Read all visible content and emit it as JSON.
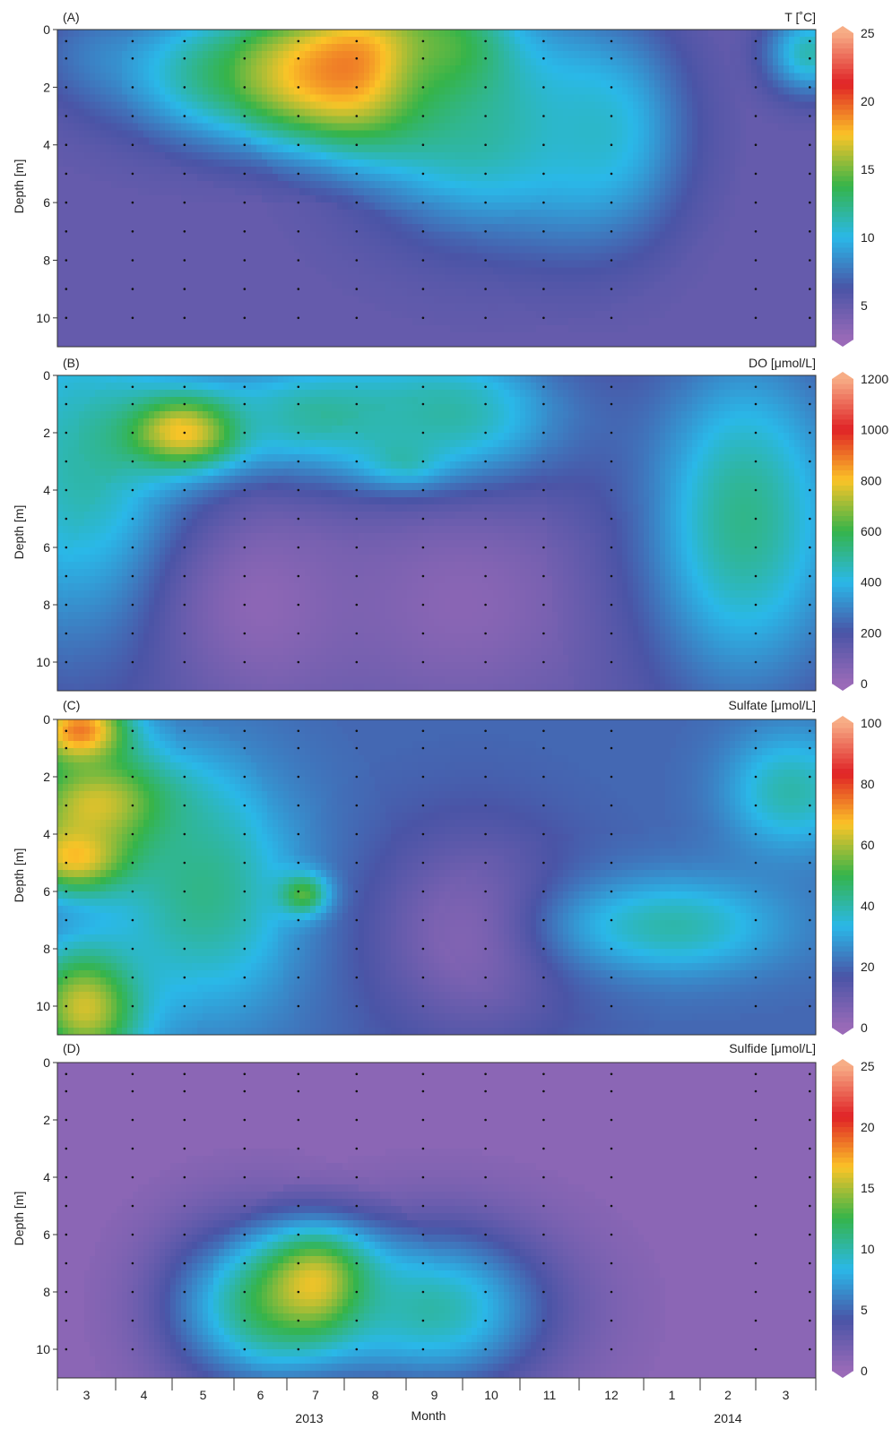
{
  "figure": {
    "xlabel": "Month",
    "month_labels": [
      "3",
      "4",
      "5",
      "6",
      "7",
      "8",
      "9",
      "10",
      "11",
      "12",
      "1",
      "2",
      "3"
    ],
    "year_labels": [
      "2013",
      "2014"
    ],
    "colorscale": [
      "#9a6ab8",
      "#4a54a6",
      "#2ab8e8",
      "#35b44a",
      "#fbc427",
      "#e02226",
      "#f7ad86"
    ]
  },
  "chart_data": [
    {
      "type": "heatmap",
      "panel_label": "(A)",
      "title": "T [˚C]",
      "ylabel": "Depth [m]",
      "yticks": [
        0,
        2,
        4,
        6,
        8,
        10
      ],
      "ylim": [
        11,
        0
      ],
      "colorbar": {
        "ticks": [
          5,
          10,
          15,
          20,
          25
        ],
        "range": [
          2.5,
          25
        ]
      },
      "features": [
        {
          "month": 0.6,
          "depth": 0.7,
          "value": 7,
          "sx": 0.8,
          "sy": 1.2
        },
        {
          "month": 3.0,
          "depth": 1.5,
          "value": 12,
          "sx": 1.5,
          "sy": 1.6
        },
        {
          "month": 4.2,
          "depth": 1.5,
          "value": 17,
          "sx": 1.1,
          "sy": 1.6
        },
        {
          "month": 5.5,
          "depth": 1.5,
          "value": 23,
          "sx": 0.9,
          "sy": 1.7
        },
        {
          "month": 6.8,
          "depth": 1.4,
          "value": 17,
          "sx": 0.9,
          "sy": 2.0
        },
        {
          "month": 7.5,
          "depth": 3.5,
          "value": 12,
          "sx": 1.5,
          "sy": 2.5
        },
        {
          "month": 9.3,
          "depth": 3.5,
          "value": 11,
          "sx": 0.9,
          "sy": 2.5
        },
        {
          "month": 12.9,
          "depth": 0.8,
          "value": 12,
          "sx": 0.5,
          "sy": 1.0
        }
      ]
    },
    {
      "type": "heatmap",
      "panel_label": "(B)",
      "title": "DO [μmol/L]",
      "ylabel": "Depth [m]",
      "yticks": [
        0,
        2,
        4,
        6,
        8,
        10
      ],
      "ylim": [
        11,
        0
      ],
      "colorbar": {
        "ticks": [
          0,
          200,
          400,
          600,
          800,
          1000,
          1200
        ],
        "range": [
          0,
          1200
        ]
      },
      "features": [
        {
          "month": 0.5,
          "depth": 3.0,
          "value": 520,
          "sx": 1.4,
          "sy": 4.5
        },
        {
          "month": 2.3,
          "depth": 2.0,
          "value": 980,
          "sx": 0.7,
          "sy": 0.9
        },
        {
          "month": 4.5,
          "depth": 1.5,
          "value": 530,
          "sx": 1.4,
          "sy": 1.5
        },
        {
          "month": 6.0,
          "depth": 3.0,
          "value": 560,
          "sx": 0.5,
          "sy": 0.6
        },
        {
          "month": 6.8,
          "depth": 1.5,
          "value": 530,
          "sx": 1.4,
          "sy": 1.8
        },
        {
          "month": 3.5,
          "depth": 8.0,
          "value": 20,
          "sx": 1.2,
          "sy": 2.5
        },
        {
          "month": 7.0,
          "depth": 8.0,
          "value": 30,
          "sx": 1.5,
          "sy": 2.6
        },
        {
          "month": 11.8,
          "depth": 5.0,
          "value": 560,
          "sx": 1.2,
          "sy": 4.0
        }
      ]
    },
    {
      "type": "heatmap",
      "panel_label": "(C)",
      "title": "Sulfate [μmol/L]",
      "ylabel": "Depth [m]",
      "yticks": [
        0,
        2,
        4,
        6,
        8,
        10
      ],
      "ylim": [
        11,
        0
      ],
      "colorbar": {
        "ticks": [
          0,
          20,
          40,
          60,
          80,
          100
        ],
        "range": [
          0,
          100
        ]
      },
      "features": [
        {
          "month": 0.4,
          "depth": 0.4,
          "value": 82,
          "sx": 0.6,
          "sy": 0.9
        },
        {
          "month": 0.8,
          "depth": 3.0,
          "value": 72,
          "sx": 1.0,
          "sy": 1.3
        },
        {
          "month": 0.4,
          "depth": 4.8,
          "value": 76,
          "sx": 0.7,
          "sy": 0.9
        },
        {
          "month": 0.5,
          "depth": 10.0,
          "value": 70,
          "sx": 0.7,
          "sy": 1.5
        },
        {
          "month": 2.5,
          "depth": 6.0,
          "value": 46,
          "sx": 1.2,
          "sy": 3.0
        },
        {
          "month": 4.3,
          "depth": 6.1,
          "value": 58,
          "sx": 0.3,
          "sy": 0.5
        },
        {
          "month": 7.2,
          "depth": 7.5,
          "value": 2,
          "sx": 1.2,
          "sy": 2.5
        },
        {
          "month": 10.5,
          "depth": 7.2,
          "value": 42,
          "sx": 1.4,
          "sy": 1.2
        },
        {
          "month": 12.6,
          "depth": 2.5,
          "value": 42,
          "sx": 0.8,
          "sy": 1.5
        }
      ]
    },
    {
      "type": "heatmap",
      "panel_label": "(D)",
      "title": "Sulfide [μmol/L]",
      "ylabel": "Depth [m]",
      "yticks": [
        0,
        2,
        4,
        6,
        8,
        10
      ],
      "ylim": [
        11,
        0
      ],
      "colorbar": {
        "ticks": [
          0,
          5,
          10,
          15,
          20,
          25
        ],
        "range": [
          0,
          25
        ]
      },
      "features": [
        {
          "month": 3.5,
          "depth": 8.5,
          "value": 12,
          "sx": 1.1,
          "sy": 2.0
        },
        {
          "month": 4.6,
          "depth": 7.8,
          "value": 20,
          "sx": 0.7,
          "sy": 1.3
        },
        {
          "month": 6.5,
          "depth": 8.6,
          "value": 11,
          "sx": 1.4,
          "sy": 2.0
        }
      ]
    }
  ]
}
